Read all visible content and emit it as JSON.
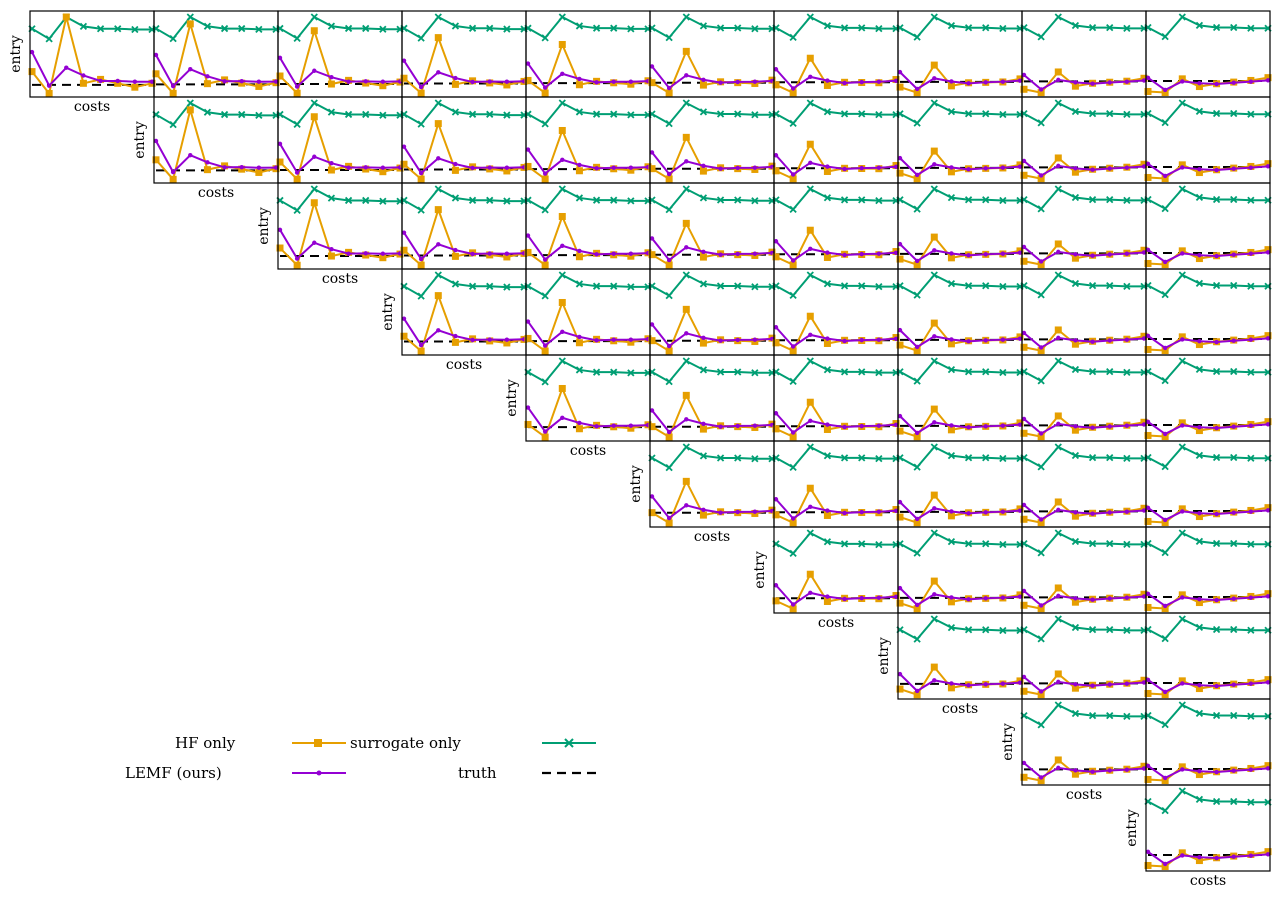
{
  "chart_data": {
    "type": "line",
    "layout": "upper-triangular grid of small multiples (10 columns, 10 rows)",
    "panel_xlabel": "costs",
    "panel_ylabel": "entry",
    "x": [
      1,
      2,
      3,
      4,
      5,
      6,
      7,
      8,
      9,
      10
    ],
    "ylim": [
      0,
      1
    ],
    "grid": false,
    "legend": {
      "placement": "lower-left",
      "entries": [
        {
          "label": "HF only",
          "color": "#E69F00",
          "marker": "square"
        },
        {
          "label": "surrogate only",
          "color": "#009E73",
          "marker": "x"
        },
        {
          "label": "LEMF (ours)",
          "color": "#9400D3",
          "marker": "dot"
        },
        {
          "label": "truth",
          "color": "#000000",
          "marker": "dashed"
        }
      ]
    },
    "series_defaults": {
      "hf_pattern": [
        0.3,
        0.02,
        1.0,
        0.15,
        0.2,
        0.15,
        0.1,
        0.15
      ],
      "surrogate_pattern": [
        0.85,
        0.72,
        1.0,
        0.88,
        0.85,
        0.85,
        0.84,
        0.84
      ],
      "lemf_pattern": [
        0.55,
        0.12,
        0.35,
        0.25,
        0.18,
        0.18,
        0.17,
        0.17
      ],
      "truth_level": 0.13
    },
    "panels": [
      {
        "row": 0,
        "col": 0
      },
      {
        "row": 0,
        "col": 1
      },
      {
        "row": 0,
        "col": 2
      },
      {
        "row": 0,
        "col": 3
      },
      {
        "row": 0,
        "col": 4
      },
      {
        "row": 0,
        "col": 5
      },
      {
        "row": 0,
        "col": 6
      },
      {
        "row": 0,
        "col": 7
      },
      {
        "row": 0,
        "col": 8
      },
      {
        "row": 0,
        "col": 9
      },
      {
        "row": 1,
        "col": 1
      },
      {
        "row": 1,
        "col": 2
      },
      {
        "row": 1,
        "col": 3
      },
      {
        "row": 1,
        "col": 4
      },
      {
        "row": 1,
        "col": 5
      },
      {
        "row": 1,
        "col": 6
      },
      {
        "row": 1,
        "col": 7
      },
      {
        "row": 1,
        "col": 8
      },
      {
        "row": 1,
        "col": 9
      },
      {
        "row": 2,
        "col": 2
      },
      {
        "row": 2,
        "col": 3
      },
      {
        "row": 2,
        "col": 4
      },
      {
        "row": 2,
        "col": 5
      },
      {
        "row": 2,
        "col": 6
      },
      {
        "row": 2,
        "col": 7
      },
      {
        "row": 2,
        "col": 8
      },
      {
        "row": 2,
        "col": 9
      },
      {
        "row": 3,
        "col": 3
      },
      {
        "row": 3,
        "col": 4
      },
      {
        "row": 3,
        "col": 5
      },
      {
        "row": 3,
        "col": 6
      },
      {
        "row": 3,
        "col": 7
      },
      {
        "row": 3,
        "col": 8
      },
      {
        "row": 3,
        "col": 9
      },
      {
        "row": 4,
        "col": 4
      },
      {
        "row": 4,
        "col": 5
      },
      {
        "row": 4,
        "col": 6
      },
      {
        "row": 4,
        "col": 7
      },
      {
        "row": 4,
        "col": 8
      },
      {
        "row": 4,
        "col": 9
      },
      {
        "row": 5,
        "col": 5
      },
      {
        "row": 5,
        "col": 6
      },
      {
        "row": 5,
        "col": 7
      },
      {
        "row": 5,
        "col": 8
      },
      {
        "row": 5,
        "col": 9
      },
      {
        "row": 6,
        "col": 6
      },
      {
        "row": 6,
        "col": 7
      },
      {
        "row": 6,
        "col": 8
      },
      {
        "row": 6,
        "col": 9
      },
      {
        "row": 7,
        "col": 7
      },
      {
        "row": 7,
        "col": 8
      },
      {
        "row": 7,
        "col": 9
      },
      {
        "row": 8,
        "col": 8
      },
      {
        "row": 8,
        "col": 9
      },
      {
        "row": 9,
        "col": 9
      }
    ]
  }
}
